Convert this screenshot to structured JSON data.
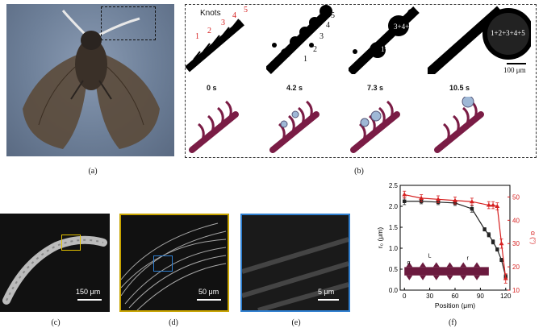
{
  "panel_labels": {
    "a": "(a)",
    "b": "(b)",
    "c": "(c)",
    "d": "(d)",
    "e": "(e)",
    "f": "(f)"
  },
  "panel_b": {
    "knots_label": "Knots",
    "knot_numbers": [
      "1",
      "2",
      "3",
      "4",
      "5"
    ],
    "times": [
      "0 s",
      "4.2 s",
      "7.3 s",
      "10.5 s"
    ],
    "frame2_labels": [
      "5",
      "4",
      "3",
      "2",
      "1"
    ],
    "frame3_labels": [
      "3+4+5",
      "1+2"
    ],
    "frame4_label": "1+2+3+4+5",
    "scale_bar": "100 μm"
  },
  "sem_scale_bars": {
    "c": "150 μm",
    "d": "50 μm",
    "e": "5 μm"
  },
  "colors": {
    "black_series": "#222222",
    "red_series": "#d62020",
    "frame_yellow": "#c8a400",
    "frame_blue": "#2f7fd0",
    "hair": "#7a1c45"
  },
  "chart_data": {
    "type": "line",
    "xlabel": "Position (μm)",
    "ylabel_left": "r₀ (μm)",
    "ylabel_right": "α (°)",
    "xlim": [
      -5,
      125
    ],
    "ylim_left": [
      0,
      2.5
    ],
    "ylim_right": [
      10,
      55
    ],
    "xticks": [
      0,
      30,
      60,
      90,
      120
    ],
    "yticks_left": [
      0.0,
      0.5,
      1.0,
      1.5,
      2.0,
      2.5
    ],
    "yticks_right": [
      10,
      20,
      30,
      40,
      50
    ],
    "inset_labels": [
      "α",
      "L",
      "r"
    ],
    "series": [
      {
        "color": "black",
        "axis": "left",
        "x": [
          0,
          20,
          40,
          60,
          80,
          95,
          100,
          105,
          110,
          115,
          120
        ],
        "y": [
          2.12,
          2.12,
          2.1,
          2.08,
          1.94,
          1.45,
          1.32,
          1.15,
          0.97,
          0.72,
          0.32
        ],
        "err": [
          0.08,
          0.06,
          0.06,
          0.06,
          0.08,
          0.04,
          0.05,
          0.05,
          0.04,
          0.04,
          0.05
        ]
      },
      {
        "color": "red",
        "axis": "right",
        "x": [
          0,
          20,
          40,
          60,
          80,
          100,
          105,
          110,
          115,
          120
        ],
        "y": [
          51,
          49.5,
          49,
          48.5,
          48,
          46.5,
          46.5,
          46,
          30,
          15
        ],
        "err": [
          1.5,
          1.5,
          1.5,
          1.5,
          1.5,
          1.5,
          1.5,
          1.5,
          2,
          2
        ]
      }
    ]
  }
}
